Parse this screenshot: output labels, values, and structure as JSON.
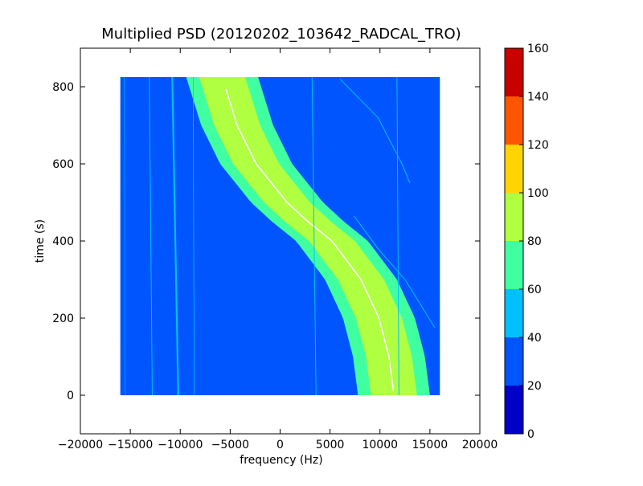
{
  "chart_data": {
    "type": "heatmap",
    "title": "Multiplied PSD (20120202_103642_RADCAL_TRO)",
    "xlabel": "frequency (Hz)",
    "ylabel": "time (s)",
    "xlim": [
      -20000,
      20000
    ],
    "ylim": [
      -100,
      900
    ],
    "data_extent": {
      "x": [
        -16000,
        16000
      ],
      "y": [
        0,
        825
      ]
    },
    "x_ticks": [
      -20000,
      -15000,
      -10000,
      -5000,
      0,
      5000,
      10000,
      15000,
      20000
    ],
    "x_tick_labels": [
      "−20000",
      "−15000",
      "−10000",
      "−5000",
      "0",
      "5000",
      "10000",
      "15000",
      "20000"
    ],
    "y_ticks": [
      0,
      200,
      400,
      600,
      800
    ],
    "y_tick_labels": [
      "0",
      "200",
      "400",
      "600",
      "800"
    ],
    "grid": false,
    "background_level": 30,
    "colorbar": {
      "min": 0,
      "max": 160,
      "ticks": [
        "0",
        "20",
        "40",
        "60",
        "80",
        "100",
        "120",
        "140",
        "160"
      ],
      "levels": [
        {
          "from": 0,
          "to": 20,
          "color": "#0000c8"
        },
        {
          "from": 20,
          "to": 40,
          "color": "#0055ff"
        },
        {
          "from": 40,
          "to": 60,
          "color": "#00c0ff"
        },
        {
          "from": 60,
          "to": 80,
          "color": "#40ffa0"
        },
        {
          "from": 80,
          "to": 100,
          "color": "#b0ff40"
        },
        {
          "from": 100,
          "to": 120,
          "color": "#ffd400"
        },
        {
          "from": 120,
          "to": 140,
          "color": "#ff5500"
        },
        {
          "from": 140,
          "to": 160,
          "color": "#c80000"
        }
      ]
    },
    "doppler_track": {
      "center_points": [
        {
          "t": 825,
          "f": -5800
        },
        {
          "t": 800,
          "f": -5500
        },
        {
          "t": 700,
          "f": -4300
        },
        {
          "t": 600,
          "f": -2400
        },
        {
          "t": 500,
          "f": 700
        },
        {
          "t": 450,
          "f": 2800
        },
        {
          "t": 400,
          "f": 5200
        },
        {
          "t": 300,
          "f": 8100
        },
        {
          "t": 200,
          "f": 9900
        },
        {
          "t": 100,
          "f": 10900
        },
        {
          "t": 0,
          "f": 11400
        }
      ],
      "bands": [
        {
          "half_width": 3600,
          "level": 70
        },
        {
          "half_width": 2300,
          "level": 90
        }
      ],
      "center_line_level": 130
    },
    "interference_lines": [
      {
        "f_top": -10800,
        "f_bottom": -10200,
        "level": 55,
        "width": 2.2
      },
      {
        "f_top": -13100,
        "f_bottom": -12800,
        "level": 45,
        "width": 1.0
      },
      {
        "f_top": -8700,
        "f_bottom": -8600,
        "level": 45,
        "width": 0.8
      },
      {
        "f_top": 3200,
        "f_bottom": 3600,
        "level": 45,
        "width": 1.0
      },
      {
        "f_top": 11700,
        "f_bottom": 11900,
        "level": 45,
        "width": 1.0
      },
      {
        "f_top": -15600,
        "f_bottom": -15500,
        "level": 40,
        "width": 0.6
      }
    ],
    "faint_arcs": [
      {
        "points": [
          {
            "t": 820,
            "f": 6000
          },
          {
            "t": 720,
            "f": 9800
          },
          {
            "t": 600,
            "f": 12200
          },
          {
            "t": 550,
            "f": 13000
          }
        ],
        "level": 55
      },
      {
        "points": [
          {
            "t": 465,
            "f": 7400
          },
          {
            "t": 380,
            "f": 9800
          },
          {
            "t": 300,
            "f": 12500
          },
          {
            "t": 175,
            "f": 15500
          }
        ],
        "level": 45
      }
    ]
  }
}
